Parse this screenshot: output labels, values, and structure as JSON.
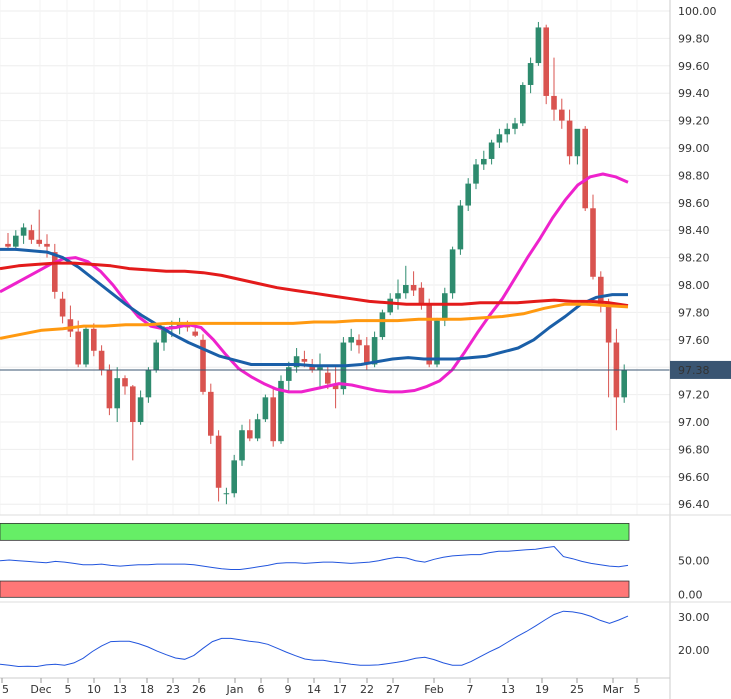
{
  "colors": {
    "bull": "#2e8b6e",
    "bear": "#d9534f",
    "sma_pink": "#ee22cc",
    "sma_blue": "#1a5fa8",
    "sma_red": "#e31b1b",
    "sma_orange": "#ff9910",
    "osc_line": "#2255dd",
    "zone_green": "#66ee66",
    "zone_red": "#ff7777",
    "price_tag": "#3a5572"
  },
  "chart_data": [
    {
      "type": "candlestick",
      "y_ticks": [
        "100.00",
        "99.80",
        "99.60",
        "99.40",
        "99.20",
        "99.00",
        "98.80",
        "98.60",
        "98.40",
        "98.20",
        "98.00",
        "97.80",
        "97.60",
        "97.40",
        "97.20",
        "97.00",
        "96.80",
        "96.60",
        "96.40"
      ],
      "ylim": [
        96.3,
        100.05
      ],
      "grid": true,
      "current_price": "97.38",
      "x_labels": [
        "5",
        "Dec",
        "5",
        "10",
        "13",
        "18",
        "23",
        "26",
        "Jan",
        "6",
        "9",
        "14",
        "17",
        "22",
        "27",
        "Feb",
        "7",
        "13",
        "19",
        "25",
        "Mar",
        "5"
      ],
      "candles": [
        [
          98.3,
          98.38,
          98.26,
          98.28
        ],
        [
          98.28,
          98.4,
          98.25,
          98.36
        ],
        [
          98.36,
          98.45,
          98.3,
          98.42
        ],
        [
          98.4,
          98.44,
          98.3,
          98.33
        ],
        [
          98.33,
          98.55,
          98.28,
          98.3
        ],
        [
          98.3,
          98.37,
          98.2,
          98.28
        ],
        [
          98.24,
          98.3,
          97.9,
          97.95
        ],
        [
          97.9,
          97.95,
          97.72,
          97.77
        ],
        [
          97.75,
          97.85,
          97.62,
          97.66
        ],
        [
          97.66,
          97.74,
          97.4,
          97.42
        ],
        [
          97.42,
          97.7,
          97.4,
          97.68
        ],
        [
          97.68,
          97.72,
          97.48,
          97.52
        ],
        [
          97.52,
          97.56,
          97.34,
          97.38
        ],
        [
          97.38,
          97.42,
          97.05,
          97.1
        ],
        [
          97.1,
          97.4,
          97.0,
          97.32
        ],
        [
          97.32,
          97.34,
          97.2,
          97.26
        ],
        [
          97.26,
          97.27,
          96.72,
          97.0
        ],
        [
          97.0,
          97.23,
          96.98,
          97.18
        ],
        [
          97.18,
          97.4,
          97.14,
          97.38
        ],
        [
          97.38,
          97.6,
          97.36,
          97.58
        ],
        [
          97.58,
          97.7,
          97.52,
          97.68
        ],
        [
          97.68,
          97.74,
          97.62,
          97.7
        ],
        [
          97.7,
          97.76,
          97.64,
          97.72
        ],
        [
          97.72,
          97.74,
          97.66,
          97.69
        ],
        [
          97.66,
          97.7,
          97.62,
          97.63
        ],
        [
          97.6,
          97.64,
          97.2,
          97.22
        ],
        [
          97.22,
          97.28,
          96.84,
          96.9
        ],
        [
          96.9,
          96.94,
          96.42,
          96.52
        ],
        [
          96.48,
          96.52,
          96.4,
          96.48
        ],
        [
          96.48,
          96.76,
          96.45,
          96.72
        ],
        [
          96.72,
          96.98,
          96.68,
          96.94
        ],
        [
          96.94,
          97.02,
          96.86,
          96.88
        ],
        [
          96.88,
          97.06,
          96.86,
          97.02
        ],
        [
          97.02,
          97.2,
          97.0,
          97.18
        ],
        [
          97.18,
          97.24,
          96.82,
          96.86
        ],
        [
          96.86,
          97.34,
          96.84,
          97.3
        ],
        [
          97.3,
          97.44,
          97.22,
          97.4
        ],
        [
          97.4,
          97.54,
          97.36,
          97.48
        ],
        [
          97.46,
          97.52,
          97.4,
          97.44
        ],
        [
          97.42,
          97.46,
          97.36,
          97.38
        ],
        [
          97.38,
          97.5,
          97.24,
          97.4
        ],
        [
          97.36,
          97.42,
          97.24,
          97.28
        ],
        [
          97.28,
          97.4,
          97.1,
          97.24
        ],
        [
          97.24,
          97.62,
          97.2,
          97.58
        ],
        [
          97.58,
          97.68,
          97.52,
          97.62
        ],
        [
          97.6,
          97.64,
          97.5,
          97.56
        ],
        [
          97.56,
          97.62,
          97.38,
          97.42
        ],
        [
          97.42,
          97.66,
          97.4,
          97.62
        ],
        [
          97.62,
          97.82,
          97.6,
          97.8
        ],
        [
          97.8,
          97.94,
          97.78,
          97.9
        ],
        [
          97.9,
          98.04,
          97.82,
          97.94
        ],
        [
          97.94,
          98.14,
          97.9,
          98.0
        ],
        [
          98.0,
          98.1,
          97.92,
          97.96
        ],
        [
          97.98,
          98.02,
          97.82,
          97.86
        ],
        [
          97.86,
          97.9,
          97.4,
          97.42
        ],
        [
          97.42,
          97.76,
          97.4,
          97.74
        ],
        [
          97.74,
          97.98,
          97.7,
          97.94
        ],
        [
          97.94,
          98.28,
          97.9,
          98.26
        ],
        [
          98.26,
          98.62,
          98.22,
          98.58
        ],
        [
          98.58,
          98.78,
          98.54,
          98.74
        ],
        [
          98.74,
          98.92,
          98.7,
          98.88
        ],
        [
          98.88,
          98.98,
          98.84,
          98.92
        ],
        [
          98.92,
          99.06,
          98.88,
          99.04
        ],
        [
          99.04,
          99.14,
          99.0,
          99.1
        ],
        [
          99.1,
          99.18,
          99.04,
          99.14
        ],
        [
          99.14,
          99.22,
          99.1,
          99.18
        ],
        [
          99.18,
          99.48,
          99.16,
          99.46
        ],
        [
          99.46,
          99.66,
          99.4,
          99.62
        ],
        [
          99.62,
          99.92,
          99.6,
          99.88
        ],
        [
          99.88,
          99.9,
          99.32,
          99.38
        ],
        [
          99.38,
          99.66,
          99.2,
          99.28
        ],
        [
          99.28,
          99.36,
          99.14,
          99.2
        ],
        [
          99.2,
          99.28,
          98.88,
          98.94
        ],
        [
          98.94,
          99.12,
          98.88,
          99.14
        ],
        [
          99.14,
          99.16,
          98.54,
          98.56
        ],
        [
          98.56,
          98.66,
          98.04,
          98.06
        ],
        [
          98.06,
          98.1,
          97.8,
          97.86
        ],
        [
          97.86,
          97.9,
          97.18,
          97.58
        ],
        [
          97.58,
          97.68,
          96.94,
          97.18
        ],
        [
          97.18,
          97.42,
          97.14,
          97.38
        ]
      ],
      "series": [
        {
          "values": [
            97.95,
            98.0,
            98.05,
            98.1,
            98.15,
            98.19,
            98.2,
            98.17,
            98.1,
            98.0,
            97.88,
            97.77,
            97.7,
            97.68,
            97.69,
            97.71,
            97.69,
            97.6,
            97.49,
            97.39,
            97.33,
            97.28,
            97.24,
            97.22,
            97.22,
            97.24,
            97.26,
            97.28,
            97.27,
            97.25,
            97.23,
            97.22,
            97.22,
            97.23,
            97.26,
            97.3,
            97.38,
            97.51,
            97.65,
            97.78,
            97.9,
            98.05,
            98.2,
            98.34,
            98.49,
            98.62,
            98.73,
            98.79,
            98.81,
            98.79,
            98.75
          ]
        },
        {
          "values": [
            98.26,
            98.26,
            98.25,
            98.24,
            98.2,
            98.13,
            98.04,
            97.95,
            97.86,
            97.78,
            97.71,
            97.64,
            97.58,
            97.53,
            97.48,
            97.45,
            97.42,
            97.42,
            97.42,
            97.42,
            97.41,
            97.41,
            97.41,
            97.42,
            97.44,
            97.46,
            97.47,
            97.46,
            97.46,
            97.46,
            97.47,
            97.48,
            97.51,
            97.54,
            97.6,
            97.69,
            97.77,
            97.86,
            97.91,
            97.93,
            97.93
          ]
        },
        {
          "values": [
            98.12,
            98.14,
            98.15,
            98.16,
            98.16,
            98.15,
            98.14,
            98.12,
            98.11,
            98.1,
            98.1,
            98.09,
            98.07,
            98.04,
            98.01,
            97.98,
            97.96,
            97.94,
            97.92,
            97.9,
            97.88,
            97.87,
            97.86,
            97.86,
            97.86,
            97.86,
            97.87,
            97.87,
            97.87,
            97.88,
            97.89,
            97.88,
            97.88,
            97.87,
            97.85
          ]
        },
        {
          "values": [
            97.61,
            97.64,
            97.67,
            97.68,
            97.7,
            97.7,
            97.71,
            97.71,
            97.72,
            97.72,
            97.72,
            97.72,
            97.72,
            97.72,
            97.72,
            97.73,
            97.73,
            97.74,
            97.74,
            97.74,
            97.75,
            97.75,
            97.75,
            97.76,
            97.77,
            97.79,
            97.83,
            97.86,
            97.86,
            97.85,
            97.84
          ]
        }
      ]
    },
    {
      "type": "line",
      "y_ticks": [
        "50.00",
        "0.00"
      ],
      "ylim": [
        -5,
        110
      ],
      "zones": [
        "green",
        "red"
      ],
      "values": [
        50,
        51,
        50,
        49,
        48,
        47,
        49,
        48,
        46,
        44,
        44,
        45,
        43,
        42,
        43,
        44,
        44,
        45,
        45,
        45,
        45,
        44,
        42,
        40,
        38,
        37,
        37,
        39,
        41,
        43,
        46,
        47,
        47,
        46,
        47,
        48,
        48,
        47,
        46,
        47,
        48,
        50,
        53,
        55,
        54,
        50,
        48,
        52,
        55,
        57,
        58,
        59,
        59,
        62,
        64,
        64,
        65,
        66,
        67,
        69,
        71,
        56,
        53,
        49,
        46,
        44,
        42,
        41,
        43
      ]
    },
    {
      "type": "line",
      "y_ticks": [
        "30.00",
        "20.00"
      ],
      "ylim": [
        12,
        34
      ],
      "values": [
        15.6,
        15.3,
        14.9,
        15.0,
        14.9,
        15.4,
        15.6,
        15.3,
        16.0,
        17.4,
        19.5,
        21.2,
        22.5,
        22.6,
        22.6,
        21.9,
        20.9,
        19.6,
        18.5,
        17.5,
        17.1,
        18.3,
        20.5,
        22.5,
        23.5,
        23.5,
        23.1,
        22.6,
        22.3,
        21.7,
        20.5,
        19.3,
        18.2,
        17.2,
        16.8,
        16.8,
        16.3,
        16.0,
        15.6,
        15.3,
        15.3,
        15.4,
        15.8,
        16.2,
        16.7,
        17.4,
        17.7,
        17.0,
        16.0,
        15.3,
        15.3,
        16.4,
        17.9,
        19.4,
        20.7,
        22.4,
        24.1,
        25.6,
        27.3,
        29.1,
        30.8,
        31.8,
        31.6,
        31.1,
        30.2,
        29.0,
        28.1,
        29.1,
        30.3
      ]
    }
  ]
}
